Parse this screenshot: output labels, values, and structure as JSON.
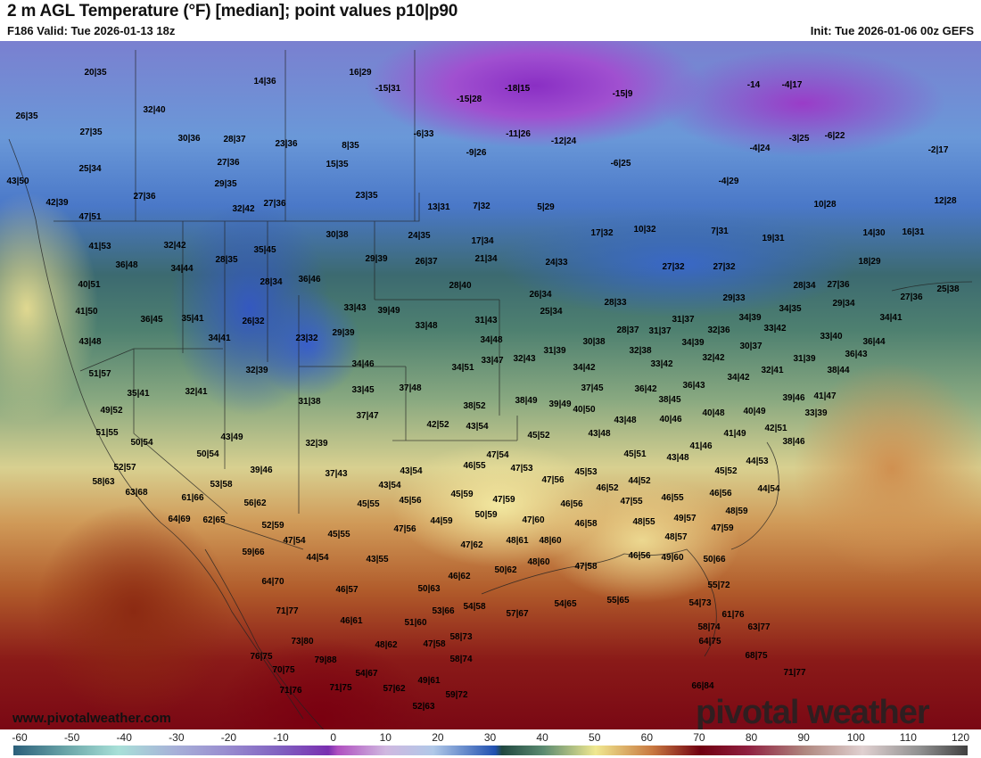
{
  "header": {
    "title": "2 m AGL Temperature (°F) [median]; point values p10|p90",
    "valid": "F186 Valid: Tue 2026-01-13 18z",
    "init": "Init: Tue 2026-01-06 00z GEFS"
  },
  "footer": {
    "website": "www.pivotalweather.com",
    "logo": "pivotal weather"
  },
  "colorbar": {
    "ticks": [
      "-60",
      "-50",
      "-40",
      "-30",
      "-20",
      "-10",
      "0",
      "10",
      "20",
      "30",
      "40",
      "50",
      "60",
      "70",
      "80",
      "90",
      "100",
      "110",
      "120"
    ]
  },
  "point_values": [
    "20|35",
    "16|29",
    "14|36",
    "-15|31",
    "-18|15",
    "-15|9",
    "-14",
    "-4|17",
    "-15|28",
    "26|35",
    "32|40",
    "27|35",
    "-6|33",
    "-11|26",
    "-12|24",
    "30|36",
    "28|37",
    "23|36",
    "8|35",
    "-3|25",
    "-6|22",
    "-2|17",
    "-4|24",
    "-9|26",
    "27|36",
    "15|35",
    "25|34",
    "-6|25",
    "43|50",
    "29|35",
    "-4|29",
    "23|35",
    "27|36",
    "42|39",
    "27|36",
    "13|31",
    "7|32",
    "5|29",
    "10|28",
    "12|28",
    "32|42",
    "47|51",
    "17|32",
    "10|32",
    "7|31",
    "19|31",
    "14|30",
    "16|31",
    "24|35",
    "30|38",
    "17|34",
    "41|53",
    "32|42",
    "35|45",
    "29|39",
    "26|37",
    "21|34",
    "24|33",
    "18|29",
    "36|48",
    "34|44",
    "28|35",
    "27|32",
    "27|32",
    "28|40",
    "28|34",
    "36|46",
    "40|51",
    "28|34",
    "27|36",
    "26|34",
    "25|38",
    "27|36",
    "29|33",
    "41|50",
    "33|43",
    "39|49",
    "25|34",
    "28|33",
    "29|34",
    "34|39",
    "34|35",
    "36|45",
    "35|41",
    "31|43",
    "33|48",
    "26|32",
    "31|37",
    "34|41",
    "33|42",
    "32|36",
    "28|37",
    "31|37",
    "23|32",
    "29|39",
    "43|48",
    "34|41",
    "34|48",
    "33|40",
    "36|44",
    "34|39",
    "30|38",
    "31|39",
    "30|37",
    "32|38",
    "32|43",
    "36|43",
    "33|47",
    "34|46",
    "32|39",
    "51|57",
    "34|51",
    "34|42",
    "33|42",
    "32|42",
    "32|41",
    "31|39",
    "38|44",
    "34|42",
    "35|41",
    "32|41",
    "33|45",
    "37|48",
    "37|45",
    "36|42",
    "36|43",
    "41|47",
    "39|46",
    "38|49",
    "38|52",
    "39|49",
    "38|45",
    "49|52",
    "31|38",
    "33|39",
    "37|47",
    "40|50",
    "40|48",
    "40|49",
    "43|48",
    "40|46",
    "42|52",
    "43|54",
    "43|48",
    "41|49",
    "42|51",
    "51|55",
    "43|49",
    "45|52",
    "50|54",
    "32|39",
    "41|46",
    "38|46",
    "50|54",
    "47|54",
    "45|51",
    "43|48",
    "44|53",
    "52|57",
    "39|46",
    "43|54",
    "46|55",
    "47|53",
    "45|53",
    "45|52",
    "58|63",
    "53|58",
    "43|54",
    "47|56",
    "44|52",
    "46|52",
    "44|54",
    "63|68",
    "61|66",
    "37|43",
    "45|59",
    "47|59",
    "46|56",
    "45|55",
    "45|56",
    "46|56",
    "47|55",
    "46|55",
    "56|62",
    "64|69",
    "62|65",
    "50|59",
    "44|59",
    "47|60",
    "48|59",
    "49|57",
    "48|55",
    "46|58",
    "52|59",
    "47|56",
    "45|55",
    "47|54",
    "48|61",
    "48|60",
    "47|59",
    "47|62",
    "48|57",
    "59|66",
    "44|54",
    "43|55",
    "48|60",
    "46|56",
    "49|60",
    "50|66",
    "47|58",
    "50|62",
    "46|62",
    "64|70",
    "55|72",
    "46|57",
    "50|63",
    "54|65",
    "55|65",
    "57|67",
    "54|58",
    "53|66",
    "71|77",
    "54|73",
    "61|76",
    "63|77",
    "46|61",
    "51|60",
    "58|74",
    "58|73",
    "73|80",
    "64|75",
    "48|62",
    "47|58",
    "76|75",
    "79|88",
    "58|74",
    "68|75",
    "70|75",
    "71|77",
    "54|67",
    "49|61",
    "71|76",
    "71|75",
    "57|62",
    "59|72",
    "66|84",
    "52|63"
  ]
}
